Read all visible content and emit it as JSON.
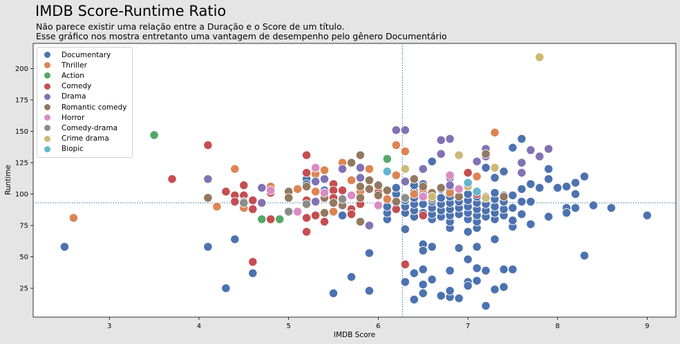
{
  "header": {
    "title": "IMDB Score-Runtime Ratio",
    "subtitle_line1": "Não parece existir uma relação entre a Duração e o Score de um título.",
    "subtitle_line2": "Esse gráfico nos mostra entretanto uma vantagem de desempenho pelo gênero Documentário"
  },
  "chart_data": {
    "type": "scatter",
    "title": "IMDB Score-Runtime Ratio",
    "xlabel": "IMDB Score",
    "ylabel": "Runtime",
    "xlim": [
      2.15,
      9.32
    ],
    "ylim": [
      2,
      220
    ],
    "xticks": [
      3,
      4,
      5,
      6,
      7,
      8,
      9
    ],
    "yticks": [
      25,
      50,
      75,
      100,
      125,
      150,
      175,
      200
    ],
    "grid": false,
    "legend_position": "top-left",
    "reference_lines": {
      "vertical_x": 6.27,
      "horizontal_y": 93
    },
    "colors": {
      "Documentary": "#4c72b0",
      "Thriller": "#dd8452",
      "Action": "#55a868",
      "Comedy": "#c44e52",
      "Drama": "#8172b3",
      "Romantic comedy": "#937860",
      "Horror": "#da8bc3",
      "Comedy-drama": "#8c8c8c",
      "Crime drama": "#ccb974",
      "Biopic": "#64b5cd"
    },
    "series": [
      {
        "name": "Documentary",
        "points": [
          [
            2.5,
            58
          ],
          [
            4.1,
            58
          ],
          [
            4.3,
            25
          ],
          [
            4.4,
            64
          ],
          [
            4.6,
            37
          ],
          [
            5.2,
            112
          ],
          [
            5.2,
            108
          ],
          [
            5.4,
            103
          ],
          [
            5.5,
            21
          ],
          [
            5.6,
            83
          ],
          [
            5.7,
            34
          ],
          [
            5.9,
            53
          ],
          [
            5.9,
            23
          ],
          [
            6.1,
            80
          ],
          [
            6.1,
            85
          ],
          [
            6.1,
            90
          ],
          [
            6.2,
            100
          ],
          [
            6.2,
            105
          ],
          [
            6.3,
            72
          ],
          [
            6.3,
            30
          ],
          [
            6.3,
            85
          ],
          [
            6.3,
            90
          ],
          [
            6.3,
            95
          ],
          [
            6.4,
            16
          ],
          [
            6.4,
            37
          ],
          [
            6.4,
            82
          ],
          [
            6.4,
            87
          ],
          [
            6.4,
            92
          ],
          [
            6.4,
            97
          ],
          [
            6.4,
            102
          ],
          [
            6.4,
            107
          ],
          [
            6.5,
            60
          ],
          [
            6.5,
            55
          ],
          [
            6.5,
            40
          ],
          [
            6.5,
            21
          ],
          [
            6.5,
            28
          ],
          [
            6.5,
            85
          ],
          [
            6.5,
            92
          ],
          [
            6.5,
            100
          ],
          [
            6.5,
            108
          ],
          [
            6.6,
            58
          ],
          [
            6.6,
            32
          ],
          [
            6.6,
            80
          ],
          [
            6.6,
            84
          ],
          [
            6.6,
            89
          ],
          [
            6.6,
            94
          ],
          [
            6.6,
            126
          ],
          [
            6.7,
            19
          ],
          [
            6.7,
            82
          ],
          [
            6.7,
            87
          ],
          [
            6.7,
            92
          ],
          [
            6.7,
            97
          ],
          [
            6.7,
            104
          ],
          [
            6.8,
            18
          ],
          [
            6.8,
            23
          ],
          [
            6.8,
            39
          ],
          [
            6.8,
            73
          ],
          [
            6.8,
            78
          ],
          [
            6.8,
            83
          ],
          [
            6.8,
            88
          ],
          [
            6.8,
            93
          ],
          [
            6.8,
            98
          ],
          [
            6.8,
            103
          ],
          [
            6.9,
            57
          ],
          [
            6.9,
            17
          ],
          [
            6.9,
            84
          ],
          [
            6.9,
            89
          ],
          [
            6.9,
            94
          ],
          [
            6.9,
            99
          ],
          [
            7.0,
            48
          ],
          [
            7.0,
            30
          ],
          [
            7.0,
            27
          ],
          [
            7.0,
            70
          ],
          [
            7.0,
            80
          ],
          [
            7.0,
            85
          ],
          [
            7.0,
            90
          ],
          [
            7.0,
            95
          ],
          [
            7.0,
            100
          ],
          [
            7.1,
            41
          ],
          [
            7.1,
            58
          ],
          [
            7.1,
            31
          ],
          [
            7.1,
            73
          ],
          [
            7.1,
            78
          ],
          [
            7.1,
            83
          ],
          [
            7.1,
            88
          ],
          [
            7.1,
            93
          ],
          [
            7.1,
            98
          ],
          [
            7.2,
            11
          ],
          [
            7.2,
            39
          ],
          [
            7.2,
            82
          ],
          [
            7.2,
            87
          ],
          [
            7.2,
            92
          ],
          [
            7.2,
            97
          ],
          [
            7.2,
            121
          ],
          [
            7.3,
            64
          ],
          [
            7.3,
            24
          ],
          [
            7.3,
            80
          ],
          [
            7.3,
            85
          ],
          [
            7.3,
            90
          ],
          [
            7.3,
            96
          ],
          [
            7.3,
            101
          ],
          [
            7.3,
            113
          ],
          [
            7.4,
            40
          ],
          [
            7.4,
            26
          ],
          [
            7.4,
            83
          ],
          [
            7.4,
            88
          ],
          [
            7.4,
            94
          ],
          [
            7.4,
            99
          ],
          [
            7.4,
            118
          ],
          [
            7.5,
            40
          ],
          [
            7.5,
            74
          ],
          [
            7.5,
            79
          ],
          [
            7.5,
            89
          ],
          [
            7.5,
            99
          ],
          [
            7.5,
            137
          ],
          [
            7.6,
            144
          ],
          [
            7.6,
            84
          ],
          [
            7.6,
            94
          ],
          [
            7.6,
            104
          ],
          [
            7.7,
            76
          ],
          [
            7.7,
            94
          ],
          [
            7.7,
            108
          ],
          [
            7.8,
            105
          ],
          [
            7.9,
            82
          ],
          [
            7.9,
            112
          ],
          [
            7.9,
            120
          ],
          [
            8.0,
            105
          ],
          [
            8.1,
            106
          ],
          [
            8.1,
            89
          ],
          [
            8.1,
            85
          ],
          [
            8.2,
            109
          ],
          [
            8.2,
            100
          ],
          [
            8.2,
            89
          ],
          [
            8.3,
            114
          ],
          [
            8.3,
            51
          ],
          [
            8.4,
            91
          ],
          [
            8.6,
            89
          ],
          [
            9.0,
            83
          ]
        ]
      },
      {
        "name": "Thriller",
        "points": [
          [
            2.6,
            81
          ],
          [
            4.2,
            90
          ],
          [
            4.4,
            120
          ],
          [
            4.5,
            89
          ],
          [
            4.8,
            106
          ],
          [
            5.1,
            104
          ],
          [
            5.3,
            116
          ],
          [
            5.3,
            102
          ],
          [
            5.4,
            119
          ],
          [
            5.5,
            86
          ],
          [
            5.6,
            125
          ],
          [
            5.7,
            111
          ],
          [
            5.8,
            102
          ],
          [
            5.9,
            120
          ],
          [
            6.0,
            103
          ],
          [
            6.1,
            96
          ],
          [
            6.2,
            139
          ],
          [
            6.2,
            115
          ],
          [
            6.3,
            134
          ],
          [
            6.4,
            100
          ],
          [
            6.5,
            104
          ],
          [
            6.6,
            97
          ],
          [
            6.8,
            101
          ],
          [
            7.0,
            108
          ],
          [
            7.1,
            114
          ],
          [
            7.3,
            149
          ]
        ]
      },
      {
        "name": "Action",
        "points": [
          [
            3.5,
            147
          ],
          [
            4.7,
            80
          ],
          [
            4.9,
            80
          ],
          [
            6.1,
            128
          ]
        ]
      },
      {
        "name": "Comedy",
        "points": [
          [
            3.7,
            112
          ],
          [
            4.1,
            139
          ],
          [
            4.3,
            102
          ],
          [
            4.4,
            99
          ],
          [
            4.4,
            94
          ],
          [
            4.5,
            107
          ],
          [
            4.5,
            99
          ],
          [
            4.6,
            95
          ],
          [
            4.6,
            88
          ],
          [
            4.6,
            46
          ],
          [
            4.8,
            101
          ],
          [
            4.8,
            80
          ],
          [
            5.2,
            131
          ],
          [
            5.2,
            117
          ],
          [
            5.2,
            95
          ],
          [
            5.2,
            81
          ],
          [
            5.2,
            70
          ],
          [
            5.3,
            83
          ],
          [
            5.4,
            78
          ],
          [
            5.5,
            108
          ],
          [
            5.5,
            103
          ],
          [
            5.5,
            97
          ],
          [
            5.6,
            103
          ],
          [
            5.6,
            94
          ],
          [
            5.7,
            88
          ],
          [
            5.7,
            84
          ],
          [
            5.8,
            92
          ],
          [
            6.0,
            101
          ],
          [
            6.2,
            88
          ],
          [
            6.3,
            44
          ],
          [
            6.5,
            83
          ],
          [
            7.0,
            117
          ],
          [
            7.1,
            100
          ]
        ]
      },
      {
        "name": "Drama",
        "points": [
          [
            4.1,
            112
          ],
          [
            4.7,
            105
          ],
          [
            4.7,
            93
          ],
          [
            5.3,
            110
          ],
          [
            5.3,
            94
          ],
          [
            5.4,
            112
          ],
          [
            5.6,
            120
          ],
          [
            5.8,
            113
          ],
          [
            5.8,
            121
          ],
          [
            5.9,
            75
          ],
          [
            6.2,
            151
          ],
          [
            6.3,
            151
          ],
          [
            6.3,
            110
          ],
          [
            6.5,
            120
          ],
          [
            6.7,
            143
          ],
          [
            6.7,
            132
          ],
          [
            6.8,
            144
          ],
          [
            6.8,
            113
          ],
          [
            6.8,
            107
          ],
          [
            7.1,
            126
          ],
          [
            7.2,
            136
          ],
          [
            7.2,
            130
          ],
          [
            7.6,
            125
          ],
          [
            7.6,
            117
          ],
          [
            7.7,
            135
          ],
          [
            7.8,
            130
          ],
          [
            7.9,
            136
          ]
        ]
      },
      {
        "name": "Romantic comedy",
        "points": [
          [
            4.1,
            97
          ],
          [
            4.5,
            94
          ],
          [
            5.0,
            102
          ],
          [
            5.0,
            97
          ],
          [
            5.2,
            106
          ],
          [
            5.4,
            97
          ],
          [
            5.4,
            85
          ],
          [
            5.5,
            93
          ],
          [
            5.6,
            91
          ],
          [
            5.7,
            125
          ],
          [
            5.8,
            131
          ],
          [
            5.8,
            106
          ],
          [
            5.8,
            97
          ],
          [
            5.8,
            78
          ],
          [
            5.9,
            111
          ],
          [
            5.9,
            104
          ],
          [
            6.0,
            107
          ],
          [
            6.0,
            99
          ],
          [
            6.1,
            103
          ],
          [
            6.2,
            94
          ],
          [
            6.3,
            97
          ],
          [
            6.4,
            112
          ],
          [
            6.5,
            106
          ],
          [
            6.6,
            101
          ],
          [
            6.7,
            105
          ],
          [
            6.9,
            98
          ],
          [
            7.2,
            132
          ],
          [
            7.4,
            98
          ]
        ]
      },
      {
        "name": "Horror",
        "points": [
          [
            4.8,
            103
          ],
          [
            5.1,
            86
          ],
          [
            5.3,
            121
          ],
          [
            5.4,
            101
          ],
          [
            5.7,
            99
          ],
          [
            6.0,
            91
          ],
          [
            6.5,
            98
          ],
          [
            6.8,
            115
          ],
          [
            6.9,
            104
          ]
        ]
      },
      {
        "name": "Comedy-drama",
        "points": [
          [
            4.5,
            93
          ],
          [
            5.0,
            86
          ],
          [
            5.2,
            92
          ],
          [
            5.6,
            96
          ],
          [
            6.3,
            97
          ],
          [
            6.6,
            96
          ],
          [
            7.2,
            98
          ]
        ]
      },
      {
        "name": "Crime drama",
        "points": [
          [
            6.3,
            120
          ],
          [
            6.6,
            98
          ],
          [
            6.9,
            131
          ],
          [
            7.0,
            106
          ],
          [
            7.2,
            97
          ],
          [
            7.3,
            121
          ],
          [
            7.8,
            209
          ]
        ]
      },
      {
        "name": "Biopic",
        "points": [
          [
            6.1,
            118
          ],
          [
            7.0,
            109
          ],
          [
            7.1,
            102
          ]
        ]
      }
    ]
  }
}
